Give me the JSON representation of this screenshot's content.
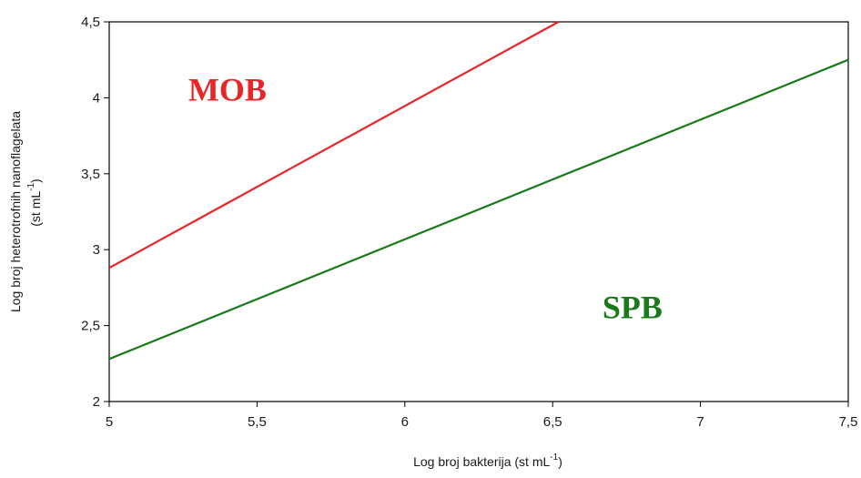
{
  "chart_data": {
    "type": "line",
    "title": "",
    "xlabel": "Log broj bakterija (st mL",
    "xlabel_sup": "-1",
    "xlabel_end": ")",
    "ylabel_line1": "Log broj heterotrofnih nanoflagelata",
    "ylabel_line2": "(st mL",
    "ylabel_sup": "-1",
    "ylabel_end": ")",
    "xlim": [
      5,
      7.5
    ],
    "ylim": [
      2,
      4.5
    ],
    "x_ticks": [
      5,
      5.5,
      6,
      6.5,
      7,
      7.5
    ],
    "x_tick_labels": [
      "5",
      "5,5",
      "6",
      "6,5",
      "7",
      "7,5"
    ],
    "y_ticks": [
      2,
      2.5,
      3,
      3.5,
      4,
      4.5
    ],
    "y_tick_labels": [
      "2",
      "2,5",
      "3",
      "3,5",
      "4",
      "4,5"
    ],
    "grid": false,
    "series": [
      {
        "name": "MOB",
        "color": "#e8262a",
        "x": [
          5,
          6.52
        ],
        "y": [
          2.88,
          4.5
        ]
      },
      {
        "name": "SPB",
        "color": "#1a7a1a",
        "x": [
          5,
          7.5
        ],
        "y": [
          2.28,
          4.25
        ]
      }
    ],
    "annotations": [
      {
        "text": "MOB",
        "x": 5.4,
        "y": 3.98,
        "color": "#e8262a"
      },
      {
        "text": "SPB",
        "x": 6.77,
        "y": 2.55,
        "color": "#1a7a1a"
      }
    ]
  }
}
